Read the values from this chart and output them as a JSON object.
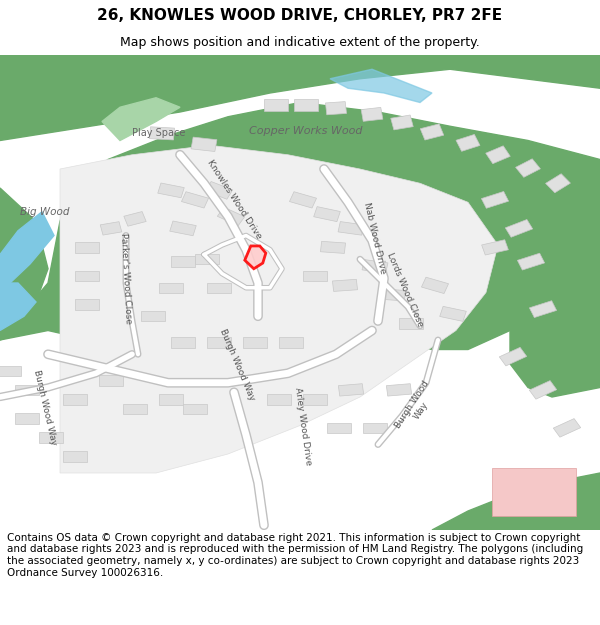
{
  "title": "26, KNOWLES WOOD DRIVE, CHORLEY, PR7 2FE",
  "subtitle": "Map shows position and indicative extent of the property.",
  "footer": "Contains OS data © Crown copyright and database right 2021. This information is subject to Crown copyright and database rights 2023 and is reproduced with the permission of HM Land Registry. The polygons (including the associated geometry, namely x, y co-ordinates) are subject to Crown copyright and database rights 2023 Ordnance Survey 100026316.",
  "map_bg": "#f5f5f5",
  "green_color": "#6aaa6a",
  "green_light": "#a8d5a8",
  "blue_color": "#7ec8e3",
  "building_color": "#e0e0e0",
  "building_stroke": "#c8c8c8",
  "highlight_color": "#ff0000",
  "title_fontsize": 11,
  "subtitle_fontsize": 9,
  "footer_fontsize": 7.5
}
